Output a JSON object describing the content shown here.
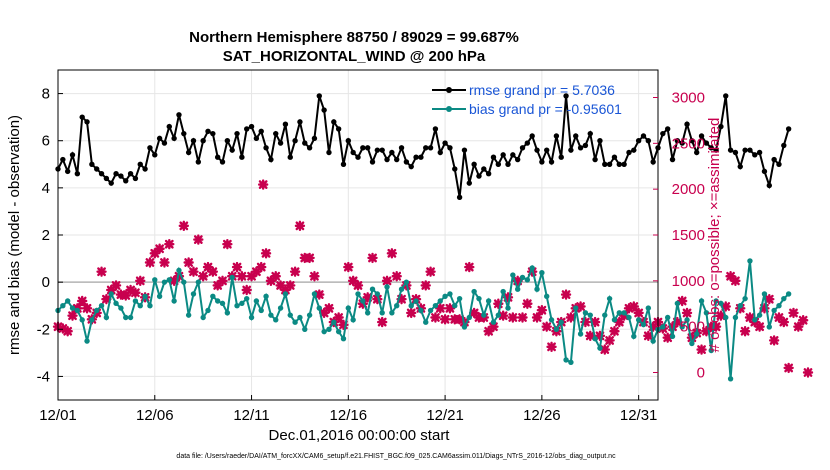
{
  "chart_data": {
    "type": "line",
    "title_line1": "Northern Hemisphere 88750 / 89029 = 99.687%",
    "title_line2": "SAT_HORIZONTAL_WIND @ 200 hPa",
    "xlabel": "Dec.01,2016 00:00:00 start",
    "ylabel_left": "rmse and bias (model - observation)",
    "ylabel_right": "# of obs: o=possible; ×=assimilated",
    "footer": "data file: /Users/raeder/DAI/ATM_forcXX/CAM6_setup/f.e21.FHIST_BGC.f09_025.CAM6assim.011/Diags_NTrS_2016-12/obs_diag_output.nc",
    "xlim": [
      1,
      32
    ],
    "ylim_left": [
      -5,
      9
    ],
    "ylim_right": [
      -300,
      3300
    ],
    "x_ticks": [
      1,
      6,
      11,
      16,
      21,
      26,
      31
    ],
    "x_tick_labels": [
      "12/01",
      "12/06",
      "12/11",
      "12/16",
      "12/21",
      "12/26",
      "12/31"
    ],
    "y_left_ticks": [
      -4,
      -2,
      0,
      2,
      4,
      6,
      8
    ],
    "y_left_tick_labels": [
      "-4",
      "-2",
      "0",
      "2",
      "4",
      "6",
      "8"
    ],
    "y_right_ticks": [
      0,
      500,
      1000,
      1500,
      2000,
      2500,
      3000
    ],
    "y_right_tick_labels": [
      "0",
      "500",
      "1000",
      "1500",
      "2000",
      "2500",
      "3000"
    ],
    "x_start": 1,
    "x_step": 0.25,
    "series": [
      {
        "name": "rmse grand pr = 5.7036",
        "color": "#000000",
        "axis": "left",
        "values": [
          4.8,
          5.2,
          4.7,
          5.4,
          4.6,
          7.0,
          6.8,
          5.0,
          4.8,
          4.6,
          4.4,
          4.2,
          4.6,
          4.5,
          4.3,
          4.6,
          4.4,
          5.0,
          4.8,
          5.7,
          5.4,
          6.1,
          5.9,
          6.6,
          6.1,
          7.1,
          6.3,
          5.5,
          6.0,
          5.1,
          6.0,
          6.4,
          6.3,
          5.3,
          5.1,
          6.0,
          5.6,
          6.3,
          5.3,
          6.5,
          6.6,
          6.1,
          6.4,
          5.7,
          5.2,
          6.3,
          5.9,
          6.7,
          5.3,
          6.0,
          6.8,
          5.9,
          5.7,
          6.1,
          7.9,
          7.3,
          5.5,
          6.8,
          6.5,
          5.0,
          6.0,
          5.5,
          5.3,
          5.7,
          5.7,
          5.1,
          5.6,
          5.6,
          5.2,
          5.5,
          5.2,
          5.7,
          5.1,
          4.9,
          5.3,
          5.3,
          5.7,
          5.7,
          6.5,
          5.5,
          5.9,
          5.7,
          4.8,
          3.6,
          5.6,
          4.2,
          5.0,
          4.5,
          4.8,
          4.6,
          5.3,
          5.0,
          5.4,
          5.0,
          5.4,
          5.2,
          5.7,
          5.9,
          6.2,
          5.6,
          5.1,
          5.6,
          5.1,
          6.2,
          5.3,
          7.9,
          5.6,
          6.2,
          5.7,
          5.8,
          6.3,
          5.2,
          6.0,
          5.0,
          5.0,
          5.3,
          5.0,
          5.0,
          5.5,
          5.6,
          6.0,
          6.2,
          6.0,
          5.1,
          5.7,
          6.3,
          6.5,
          5.2,
          6.0,
          5.9,
          6.7,
          6.0,
          5.5,
          6.2,
          5.9,
          5.7,
          5.6,
          6.6,
          7.9,
          5.6,
          5.5,
          4.9,
          5.6,
          5.6,
          5.4,
          5.5,
          4.7,
          4.1,
          5.2,
          5.0,
          5.8,
          6.5
        ]
      },
      {
        "name": "bias grand pr = -0.95601",
        "color": "#0b8a84",
        "axis": "left",
        "values": [
          -1.2,
          -1.0,
          -0.8,
          -1.1,
          -1.2,
          -1.6,
          -2.5,
          -1.6,
          -1.2,
          -1.0,
          -1.5,
          -0.5,
          -0.9,
          -1.1,
          -1.5,
          -1.5,
          -0.8,
          -1.0,
          -0.6,
          -1.0,
          0.1,
          -0.6,
          0.0,
          0.1,
          -0.8,
          0.5,
          0.0,
          -1.4,
          -0.5,
          0.0,
          -1.5,
          -1.2,
          -0.6,
          -0.8,
          -0.9,
          -1.3,
          0.2,
          -1.0,
          -0.9,
          -0.7,
          -1.5,
          -0.8,
          -1.2,
          -0.6,
          -1.4,
          -1.6,
          -1.1,
          -0.5,
          -1.4,
          -1.7,
          -1.5,
          -2.0,
          -1.4,
          -0.5,
          -1.1,
          -2.1,
          -2.0,
          -1.7,
          -2.1,
          -2.4,
          -1.1,
          -1.6,
          -0.5,
          -0.8,
          -1.3,
          -0.3,
          -0.5,
          -1.3,
          -0.2,
          -1.3,
          -1.0,
          -0.3,
          0.0,
          -1.0,
          -0.8,
          -1.2,
          -1.7,
          -1.2,
          -1.0,
          -0.8,
          -0.6,
          -0.5,
          -1.0,
          -0.7,
          -1.9,
          -1.5,
          -0.4,
          -0.7,
          -1.4,
          -0.8,
          -1.7,
          -1.4,
          -0.4,
          -1.1,
          0.3,
          -0.3,
          0.2,
          0.1,
          0.6,
          -0.3,
          0.4,
          -0.6,
          -1.6,
          -2.0,
          -1.7,
          -3.3,
          -3.4,
          -1.1,
          -2.2,
          -1.3,
          -1.4,
          -2.4,
          -2.8,
          -1.4,
          -0.7,
          -1.6,
          -1.3,
          -1.3,
          -1.5,
          -2.3,
          -1.6,
          -1.8,
          -1.1,
          -2.5,
          -2.0,
          -1.9,
          -1.5,
          -2.3,
          -0.9,
          -1.9,
          -1.6,
          -2.6,
          -2.2,
          -0.8,
          -1.3,
          -2.9,
          -0.8,
          -0.9,
          -1.5,
          -4.1,
          -1.5,
          -1.0,
          -0.7,
          0.9,
          -1.6,
          -1.4,
          -0.5,
          -1.9,
          -1.2,
          -1.0,
          -0.7,
          -0.5
        ]
      }
    ],
    "assimilated_count": {
      "name": "assimilated",
      "marker": "×",
      "color": "#c8004e",
      "axis": "right",
      "x_start": 1,
      "x_step": 0.25,
      "values": [
        500,
        480,
        450,
        620,
        700,
        780,
        700,
        580,
        650,
        1100,
        800,
        900,
        950,
        850,
        840,
        900,
        870,
        1000,
        820,
        1200,
        1300,
        1350,
        1200,
        1400,
        1000,
        1050,
        1600,
        1200,
        1100,
        1450,
        1050,
        1150,
        1100,
        950,
        1000,
        1400,
        1050,
        1150,
        1050,
        900,
        1050,
        1100,
        1150,
        1300,
        1000,
        1050,
        950,
        900,
        950,
        1100,
        1600,
        1250,
        1250,
        1050,
        850,
        650,
        700,
        550,
        600,
        520,
        1150,
        1000,
        950,
        750,
        820,
        1250,
        800,
        550,
        1000,
        1300,
        1050,
        800,
        950,
        650,
        800,
        700,
        950,
        1100,
        600,
        700,
        580,
        700,
        580,
        580,
        550,
        1150,
        650,
        600,
        600,
        450,
        500,
        750,
        620,
        820,
        600,
        1000,
        600,
        750,
        1100,
        600,
        680,
        500,
        280,
        450,
        550,
        850,
        600,
        700,
        720,
        550,
        400,
        550,
        400,
        250,
        350,
        450,
        550,
        620,
        700,
        720,
        650,
        550,
        400,
        500,
        550,
        480,
        380,
        500,
        550,
        780,
        650,
        380,
        430,
        250,
        450,
        500,
        500,
        620,
        720,
        1050,
        1000,
        700,
        450,
        600,
        550,
        500,
        700,
        800,
        350,
        600,
        550,
        50,
        650,
        500,
        570,
        0
      ]
    },
    "special_points": [
      {
        "name": "assimilated outlier",
        "x": 11.6,
        "y": 2050,
        "axis": "right"
      }
    ],
    "legend": {
      "placement": "top-right"
    },
    "colors": {
      "rmse": "#000000",
      "bias": "#0b8a84",
      "obs": "#c8004e",
      "zero_line": "#b3b3b3",
      "legend_text": "#1a56d6",
      "grid": "#e6e6e6"
    }
  }
}
